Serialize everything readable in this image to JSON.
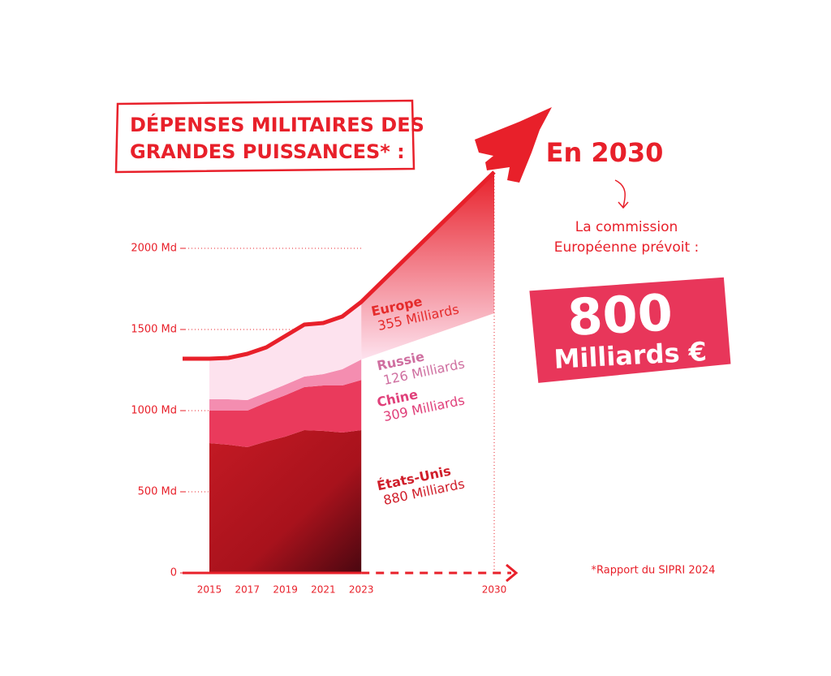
{
  "chart_data": {
    "type": "stacked-area",
    "title": [
      "DÉPENSES MILITAIRES DES",
      "GRANDES PUISSANCES* :"
    ],
    "x": [
      2015,
      2016,
      2017,
      2018,
      2019,
      2020,
      2021,
      2022,
      2023
    ],
    "series": [
      {
        "name": "États-Unis",
        "color": "#b8141f",
        "label_color": "#d01e2a",
        "values": [
          800,
          790,
          775,
          810,
          840,
          880,
          875,
          865,
          880
        ],
        "value_labels": [
          null,
          null,
          null,
          null,
          null,
          null,
          null,
          null,
          "880 Milliards"
        ]
      },
      {
        "name": "Chine",
        "color": "#ea3a5c",
        "label_color": "#e0407a",
        "values": [
          200,
          210,
          225,
          240,
          255,
          265,
          280,
          290,
          309
        ],
        "value_labels": [
          null,
          null,
          null,
          null,
          null,
          null,
          null,
          null,
          "309 Milliards"
        ]
      },
      {
        "name": "Russie",
        "color": "#f48db0",
        "label_color": "#cf6fa0",
        "values": [
          70,
          70,
          65,
          62,
          65,
          65,
          70,
          100,
          126
        ],
        "value_labels": [
          null,
          null,
          null,
          null,
          null,
          null,
          null,
          null,
          "126 Milliards"
        ]
      },
      {
        "name": "Europe",
        "color": "#fde2ee",
        "label_color": "#e52b2b",
        "values": [
          250,
          255,
          285,
          278,
          300,
          320,
          315,
          325,
          355
        ],
        "value_labels": [
          null,
          null,
          null,
          null,
          null,
          null,
          null,
          null,
          "355 Milliards"
        ]
      }
    ],
    "projection": {
      "x": [
        2023,
        2030
      ],
      "lower": [
        1315,
        1600
      ],
      "upper": [
        1670,
        2470
      ],
      "color": "#e8202a"
    },
    "xlim": [
      2014,
      2031
    ],
    "xticks": [
      2015,
      2017,
      2019,
      2021,
      2023,
      2030
    ],
    "ylim": [
      0,
      2500
    ],
    "yticks": [
      0,
      {
        "value": 500,
        "label": "500 Md"
      },
      {
        "value": 1000,
        "label": "1000 Md"
      },
      {
        "value": 1500,
        "label": "1500 Md"
      },
      {
        "value": 2000,
        "label": "2000 Md"
      }
    ],
    "grid": true,
    "callout": {
      "heading": "En 2030",
      "text": [
        "La commission",
        "Européenne prévoit :"
      ],
      "amount": 800,
      "unit": "Milliards €"
    },
    "source": "*Rapport du SIPRI 2024"
  }
}
